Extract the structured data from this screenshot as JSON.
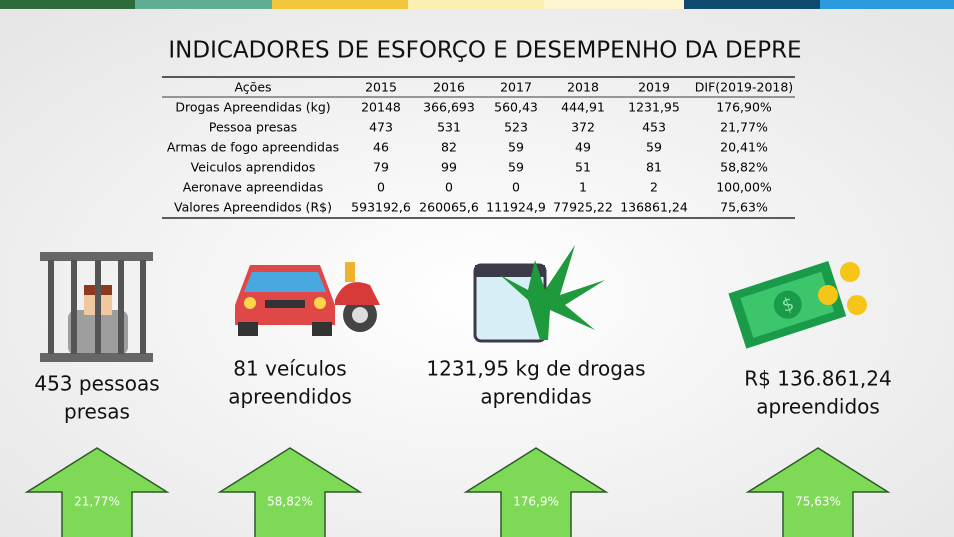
{
  "title": "INDICADORES DE ESFORÇO E DESEMPENHO DA DEPRE",
  "table": {
    "header": [
      "Ações",
      "2015",
      "2016",
      "2017",
      "2018",
      "2019",
      "DIF(2019-2018)"
    ],
    "rows": [
      [
        "Drogas Apreendidas (kg)",
        "20148",
        "366,693",
        "560,43",
        "444,91",
        "1231,95",
        "176,90%"
      ],
      [
        "Pessoa presas",
        "473",
        "531",
        "523",
        "372",
        "453",
        "21,77%"
      ],
      [
        "Armas de fogo apreendidas",
        "46",
        "82",
        "59",
        "49",
        "59",
        "20,41%"
      ],
      [
        "Veiculos aprendidos",
        "79",
        "99",
        "59",
        "51",
        "81",
        "58,82%"
      ],
      [
        "Aeronave apreendidas",
        "0",
        "0",
        "0",
        "1",
        "2",
        "100,00%"
      ],
      [
        "Valores Apreendidos (R$)",
        "593192,6",
        "260065,6",
        "111924,9",
        "77925,22",
        "136861,24",
        "75,63%"
      ]
    ]
  },
  "indicators": [
    {
      "label_lines": [
        "453 pessoas",
        "presas"
      ],
      "change": "21,77%"
    },
    {
      "label_lines": [
        "81 veículos",
        "apreendidos"
      ],
      "change": "58,82%"
    },
    {
      "label_lines": [
        "1231,95 kg de drogas",
        "aprendidas"
      ],
      "change": "176,9%"
    },
    {
      "label_lines": [
        "R$ 136.861,24",
        "apreendidos"
      ],
      "change": "75,63%"
    }
  ]
}
